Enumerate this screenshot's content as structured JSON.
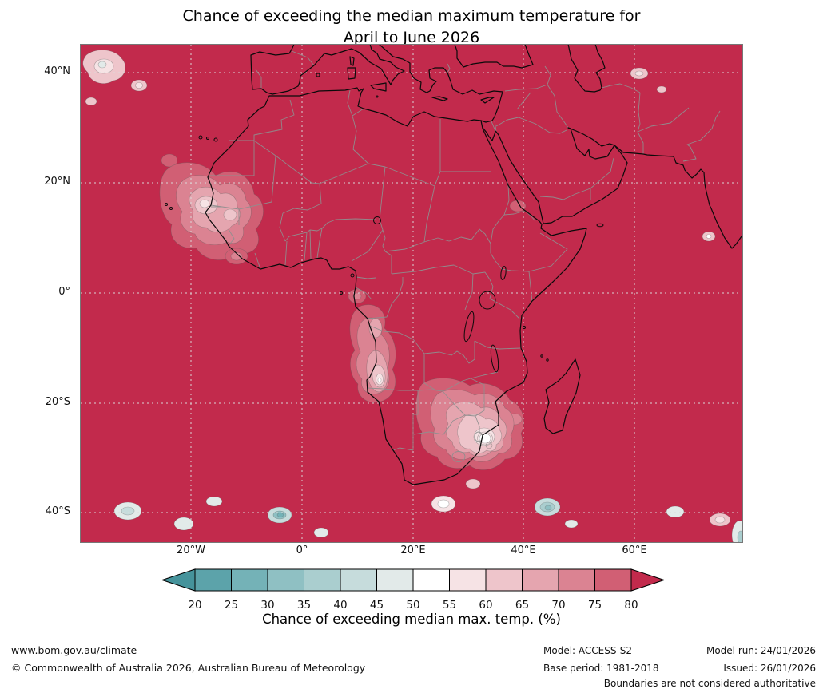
{
  "title": {
    "line1": "Chance of exceeding the median maximum temperature for",
    "line2": "April to June 2026"
  },
  "map": {
    "lat_ticks": [
      "40°N",
      "20°N",
      "0°",
      "20°S",
      "40°S"
    ],
    "lon_ticks": [
      "20°W",
      "0°",
      "20°E",
      "40°E",
      "60°E"
    ]
  },
  "palette": {
    "lt20": "#45939b",
    "c20": "#5ca3aa",
    "c25": "#74b2b7",
    "c30": "#8fc0c3",
    "c35": "#aacecf",
    "c40": "#c6dcdc",
    "c45": "#e2eae9",
    "c50": "#ffffff",
    "c55": "#f6e3e5",
    "c60": "#eec5cb",
    "c65": "#e5a5af",
    "c70": "#db8392",
    "c75": "#d15f74",
    "gt80": "#c22a4c"
  },
  "colorbar": {
    "ticks": [
      "20",
      "25",
      "30",
      "35",
      "40",
      "45",
      "50",
      "55",
      "60",
      "65",
      "70",
      "75",
      "80"
    ],
    "segment_keys": [
      "c20",
      "c25",
      "c30",
      "c35",
      "c40",
      "c45",
      "c50",
      "c55",
      "c60",
      "c65",
      "c70",
      "c75"
    ],
    "left_arrow_key": "lt20",
    "right_arrow_key": "gt80",
    "label": "Chance of exceeding median max. temp. (%)"
  },
  "footer": {
    "website": "www.bom.gov.au/climate",
    "copyright": "© Commonwealth of Australia 2026, Australian Bureau of Meteorology",
    "model": "Model: ACCESS-S2",
    "base_period": "Base period: 1981-2018",
    "model_run": "Model run: 24/01/2026",
    "issued": "Issued: 26/01/2026",
    "disclaimer": "Boundaries are not considered authoritative"
  },
  "chart_data": {
    "type": "heatmap",
    "title": "Chance of exceeding the median maximum temperature for April to June 2026",
    "variable": "Chance of exceeding median max. temp. (%)",
    "scale_ticks": [
      20,
      25,
      30,
      35,
      40,
      45,
      50,
      55,
      60,
      65,
      70,
      75,
      80
    ],
    "lat_axis": [
      "40°N",
      "20°N",
      "0°",
      "20°S",
      "40°S"
    ],
    "lon_axis": [
      "20°W",
      "0°",
      "20°E",
      "40°E",
      "60°E"
    ],
    "dominant_class": ">80%",
    "lower_chance_regions": [
      {
        "region": "tropical Atlantic off Senegal/Mauritania",
        "approx_value": "55-75%"
      },
      {
        "region": "Gabon to Angola coast and interior",
        "approx_value": "45-75%"
      },
      {
        "region": "southern Africa interior (Botswana/Zimbabwe/NE South Africa/S Mozambique)",
        "approx_value": "45-75%"
      },
      {
        "region": "scattered Southern Ocean patches near 40°S",
        "approx_value": "25-55%"
      }
    ]
  }
}
